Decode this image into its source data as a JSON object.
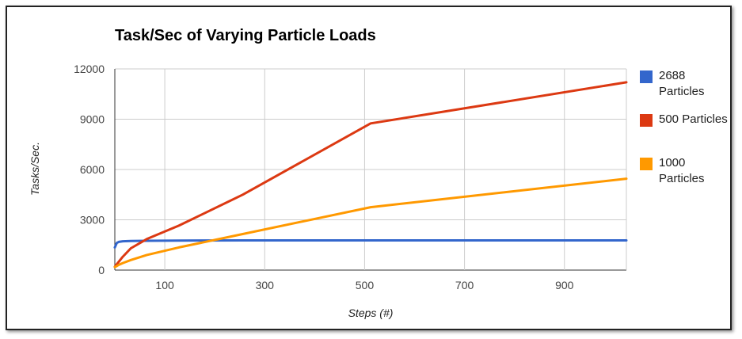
{
  "chart_data": {
    "type": "line",
    "title": "Task/Sec of Varying Particle Loads",
    "xlabel": "Steps (#)",
    "ylabel": "Tasks/Sec.",
    "xlim": [
      0,
      1024
    ],
    "ylim": [
      0,
      12000
    ],
    "x_ticks": [
      100,
      300,
      500,
      700,
      900
    ],
    "x_tick_labels": [
      "100",
      "300",
      "500",
      "700",
      "900"
    ],
    "y_ticks": [
      0,
      3000,
      6000,
      9000,
      12000
    ],
    "y_tick_labels": [
      "0",
      "3000",
      "6000",
      "9000",
      "12000"
    ],
    "grid": true,
    "legend_position": "right",
    "series": [
      {
        "name": "2688 Particles",
        "color": "#3366cc",
        "x": [
          0,
          4,
          8,
          16,
          32,
          64,
          128,
          256,
          512,
          1024
        ],
        "y": [
          1350,
          1620,
          1680,
          1720,
          1740,
          1750,
          1760,
          1770,
          1770,
          1770
        ]
      },
      {
        "name": "500 Particles",
        "color": "#dc3912",
        "x": [
          0,
          4,
          8,
          16,
          32,
          64,
          128,
          256,
          512,
          1024
        ],
        "y": [
          200,
          350,
          500,
          800,
          1300,
          1850,
          2650,
          4500,
          8750,
          11200
        ]
      },
      {
        "name": "1000 Particles",
        "color": "#ff9900",
        "x": [
          0,
          4,
          8,
          16,
          32,
          64,
          128,
          256,
          512,
          1024
        ],
        "y": [
          180,
          240,
          310,
          420,
          600,
          900,
          1350,
          2150,
          3750,
          5450
        ]
      }
    ]
  }
}
